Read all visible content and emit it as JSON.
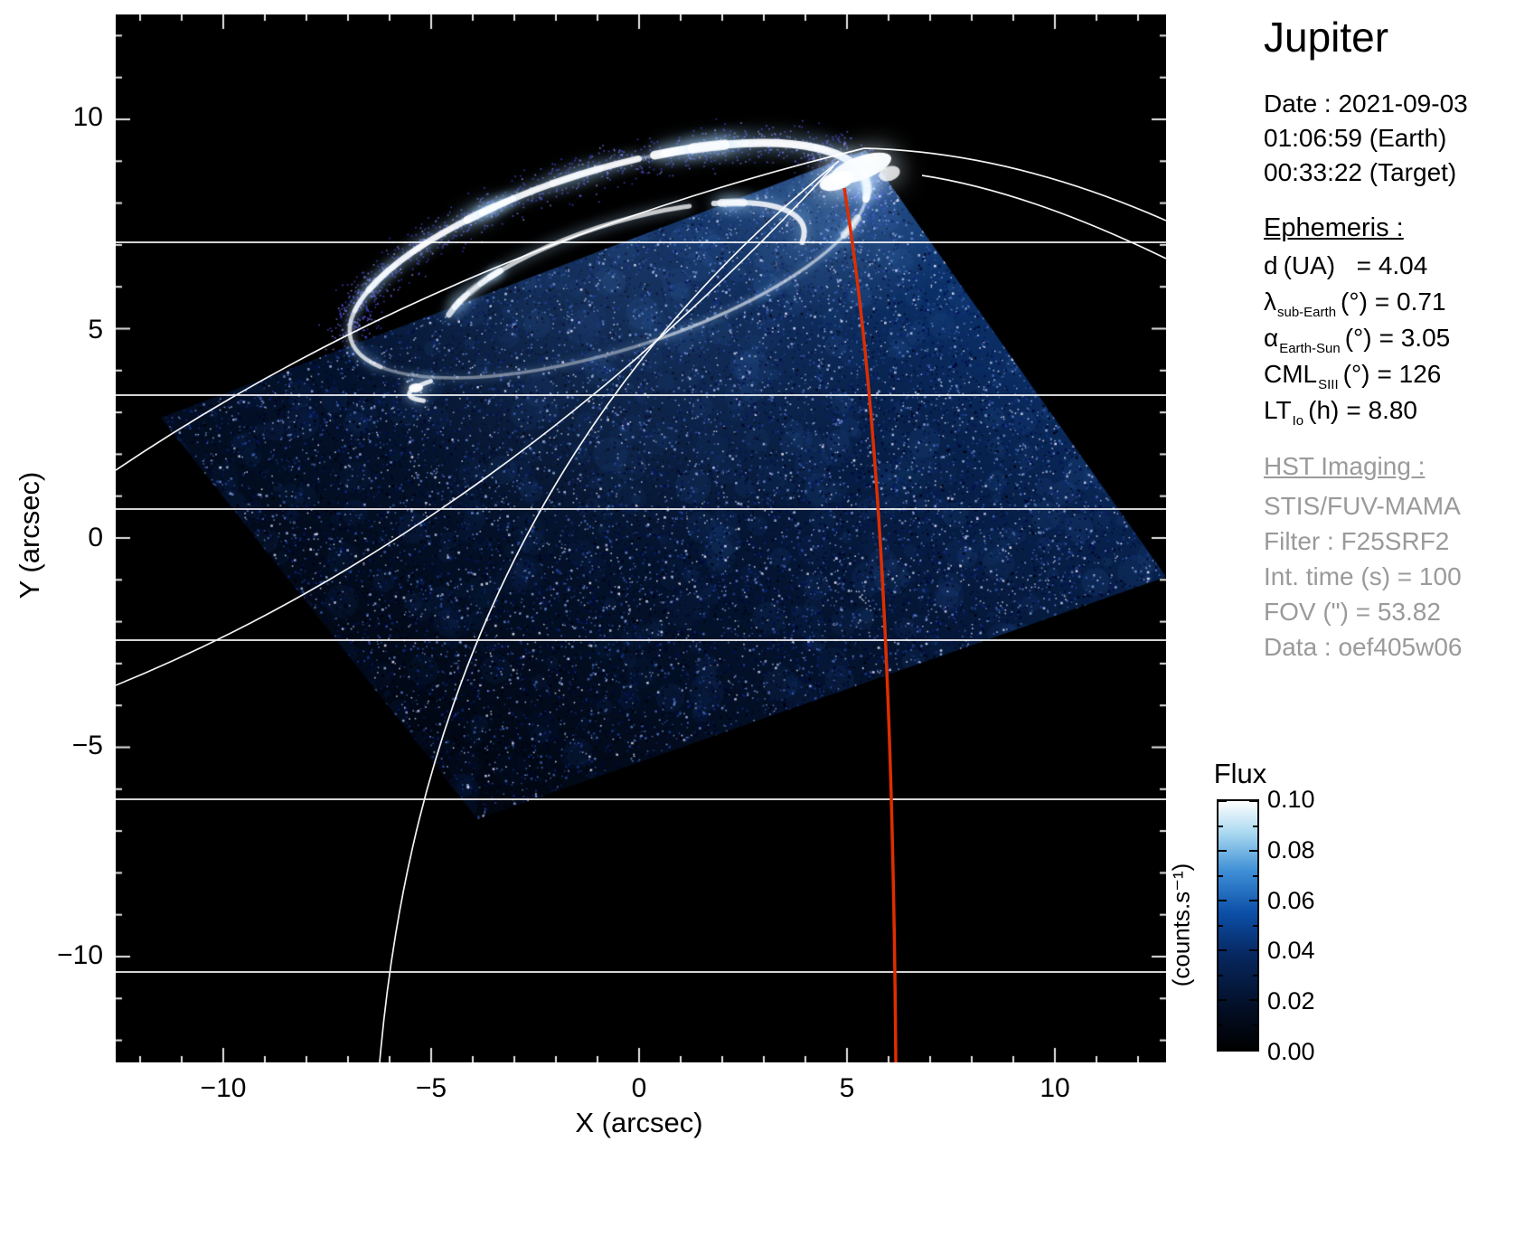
{
  "title": "Jupiter",
  "observation": {
    "date_line": "Date : 2021-09-03",
    "earth_time_line": "01:06:59 (Earth)",
    "target_time_line": "00:33:22 (Target)"
  },
  "ephemeris": {
    "heading": "Ephemeris :",
    "rows": [
      {
        "name": "d",
        "sub": "",
        "unit": "(UA)",
        "eq": "  = 4.04"
      },
      {
        "name": "λ",
        "sub": "sub-Earth",
        "unit": "(°)",
        "eq": "= 0.71"
      },
      {
        "name": "α",
        "sub": "Earth-Sun",
        "unit": "(°)",
        "eq": "= 3.05"
      },
      {
        "name": "CML",
        "sub": "SIII",
        "unit": "(°)",
        "eq": "= 126"
      },
      {
        "name": "LT",
        "sub": "Io",
        "unit": "(h)",
        "eq": "= 8.80"
      }
    ]
  },
  "hst": {
    "heading": "HST Imaging :",
    "lines": [
      "STIS/FUV-MAMA",
      "Filter : F25SRF2",
      "Int. time (s) = 100",
      "FOV (\") = 53.82",
      "Data : oef405w06"
    ]
  },
  "axes": {
    "x_label": "X (arcsec)",
    "y_label": "Y (arcsec)",
    "x_ticks": [
      "−10",
      "−5",
      "0",
      "5",
      "10"
    ],
    "y_ticks": [
      "10",
      "5",
      "0",
      "−5",
      "−10"
    ]
  },
  "colorbar": {
    "title": "Flux",
    "unit": "(counts.s⁻¹)",
    "tick_labels": [
      "0.10",
      "0.08",
      "0.06",
      "0.04",
      "0.02",
      "0.00"
    ]
  },
  "colors": {
    "background": "#ffffff",
    "plot_bg": "#000000",
    "graticule": "#ffffff",
    "meridian_red": "#dd2e00",
    "text": "#000000",
    "hst_text": "#9a9a9a",
    "noise_deep": "#01060f",
    "noise_mid": "#0a2a6e"
  },
  "chart_data": {
    "type": "heatmap",
    "title": "Jupiter",
    "xlabel": "X (arcsec)",
    "ylabel": "Y (arcsec)",
    "xlim": [
      -12.6,
      12.6
    ],
    "ylim": [
      -12.5,
      12.5
    ],
    "x_ticks": [
      -10,
      -5,
      0,
      5,
      10
    ],
    "y_ticks": [
      10,
      5,
      0,
      -5,
      -10
    ],
    "grid": false,
    "colorbar": {
      "label": "Flux",
      "unit": "counts.s⁻¹",
      "min": 0.0,
      "max": 0.1,
      "ticks": [
        0.0,
        0.02,
        0.04,
        0.06,
        0.08,
        0.1
      ],
      "colormap": "black-blue-white"
    },
    "ephemeris_values": {
      "d_UA": 4.04,
      "lambda_sub_earth_deg": 0.71,
      "alpha_earth_sun_deg": 3.05,
      "CML_SIII_deg": 126,
      "LT_Io_h": 8.8
    },
    "overlays": [
      {
        "name": "planetocentric-graticule",
        "color": "#ffffff",
        "style": "thin curved latitude and meridian lines converging near the pole"
      },
      {
        "name": "central-meridian-line",
        "color": "#dd2e00",
        "style": "red curve from near the auroral pole down to the bottom of the plot near x≈6"
      }
    ],
    "image_content": "HST STIS/FUV-MAMA far-ultraviolet image of Jupiter's northern aurora: a rotated-square detector field of view filled with speckled blue background noise, brightening toward the top; the bright white main auroral oval spans roughly x=-7..5, y=4..9 with its brightest patch near (5, 8.5); fainter inner arcs inside the oval and a short Io-footprint streak near (-5, 3.5); sky outside the field of view is black."
  }
}
